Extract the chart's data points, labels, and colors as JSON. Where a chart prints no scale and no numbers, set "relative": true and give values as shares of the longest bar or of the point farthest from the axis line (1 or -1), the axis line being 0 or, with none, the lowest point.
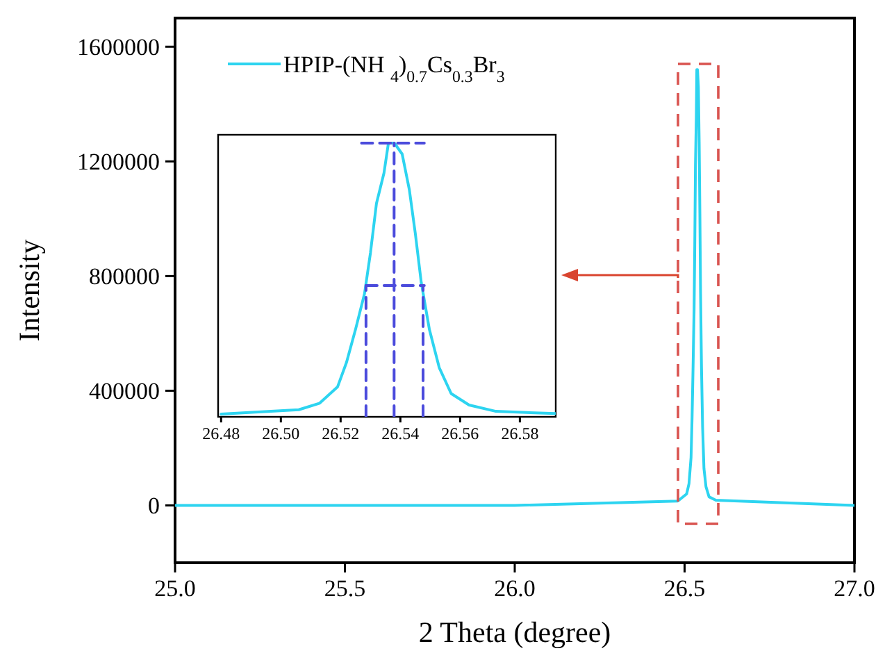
{
  "chart_data": [
    {
      "type": "line",
      "xlabel": "2 Theta (degree)",
      "ylabel": "Intensity",
      "xlim": [
        25,
        27
      ],
      "xticks": [
        {
          "value": 25,
          "label": "25.0"
        },
        {
          "value": 25.5,
          "label": "25.5"
        },
        {
          "value": 26,
          "label": "26.0"
        },
        {
          "value": 26.5,
          "label": "26.5"
        },
        {
          "value": 27,
          "label": "27.0"
        }
      ],
      "ylim": [
        -200000,
        1700000
      ],
      "yticks": [
        0,
        400000,
        800000,
        1200000,
        1600000
      ],
      "legend": "top left",
      "series": [
        {
          "name": "HPIP-(NH $_{4}$)$_{0.7}$Cs$_{0.3}$Br$_{3}$",
          "color": "#2dd4f0",
          "x": [
            25.0,
            26.0,
            26.48,
            26.506,
            26.513,
            26.519,
            26.522,
            26.525,
            26.528,
            26.53,
            26.532,
            26.5345,
            26.536,
            26.538,
            26.5406,
            26.543,
            26.545,
            26.547,
            26.5497,
            26.553,
            26.557,
            26.563,
            26.572,
            26.592,
            27.0
          ],
          "values": [
            0,
            0,
            15000,
            40000,
            76000,
            167000,
            304000,
            486000,
            684000,
            912000,
            1186000,
            1353000,
            1520000,
            1520000,
            1459000,
            1262000,
            1018000,
            745000,
            486000,
            274000,
            129000,
            65000,
            30000,
            18000,
            0
          ]
        }
      ]
    },
    {
      "type": "line",
      "relative": true,
      "tick_labels": "x",
      "xlim": [
        26.479,
        26.592
      ],
      "xticks": [
        {
          "value": 26.48,
          "label": "26.48"
        },
        {
          "value": 26.5,
          "label": "26.50"
        },
        {
          "value": 26.52,
          "label": "26.52"
        },
        {
          "value": 26.54,
          "label": "26.54"
        },
        {
          "value": 26.56,
          "label": "26.56"
        },
        {
          "value": 26.58,
          "label": "26.58"
        }
      ],
      "series": [
        {
          "color": "#2dd4f0",
          "x": [
            26.48,
            26.506,
            26.513,
            26.519,
            26.522,
            26.525,
            26.528,
            26.53,
            26.532,
            26.5345,
            26.536,
            26.538,
            26.5406,
            26.543,
            26.545,
            26.547,
            26.5497,
            26.553,
            26.557,
            26.563,
            26.572,
            26.592
          ],
          "values": [
            0.01,
            0.026,
            0.05,
            0.11,
            0.2,
            0.32,
            0.45,
            0.6,
            0.78,
            0.89,
            1.0,
            1.0,
            0.96,
            0.83,
            0.67,
            0.49,
            0.32,
            0.18,
            0.085,
            0.043,
            0.02,
            0.012
          ]
        },
        {
          "color": "#4b4bdc",
          "line_style": "dashed",
          "x": [
            26.527,
            26.548
          ],
          "values": [
            1.0,
            1.0
          ]
        },
        {
          "color": "#4b4bdc",
          "line_style": "dashed",
          "x": [
            26.5285,
            26.548
          ],
          "values": [
            0.48,
            0.48
          ]
        },
        {
          "color": "#4b4bdc",
          "line_style": "dashed",
          "x": [
            26.5285,
            26.5285
          ],
          "values": [
            0,
            0.48
          ]
        },
        {
          "color": "#4b4bdc",
          "line_style": "dashed",
          "x": [
            26.5379,
            26.5379
          ],
          "values": [
            0,
            1.0
          ]
        },
        {
          "color": "#4b4bdc",
          "line_style": "dashed",
          "x": [
            26.5476,
            26.5476
          ],
          "values": [
            0,
            0.48
          ]
        }
      ]
    }
  ]
}
